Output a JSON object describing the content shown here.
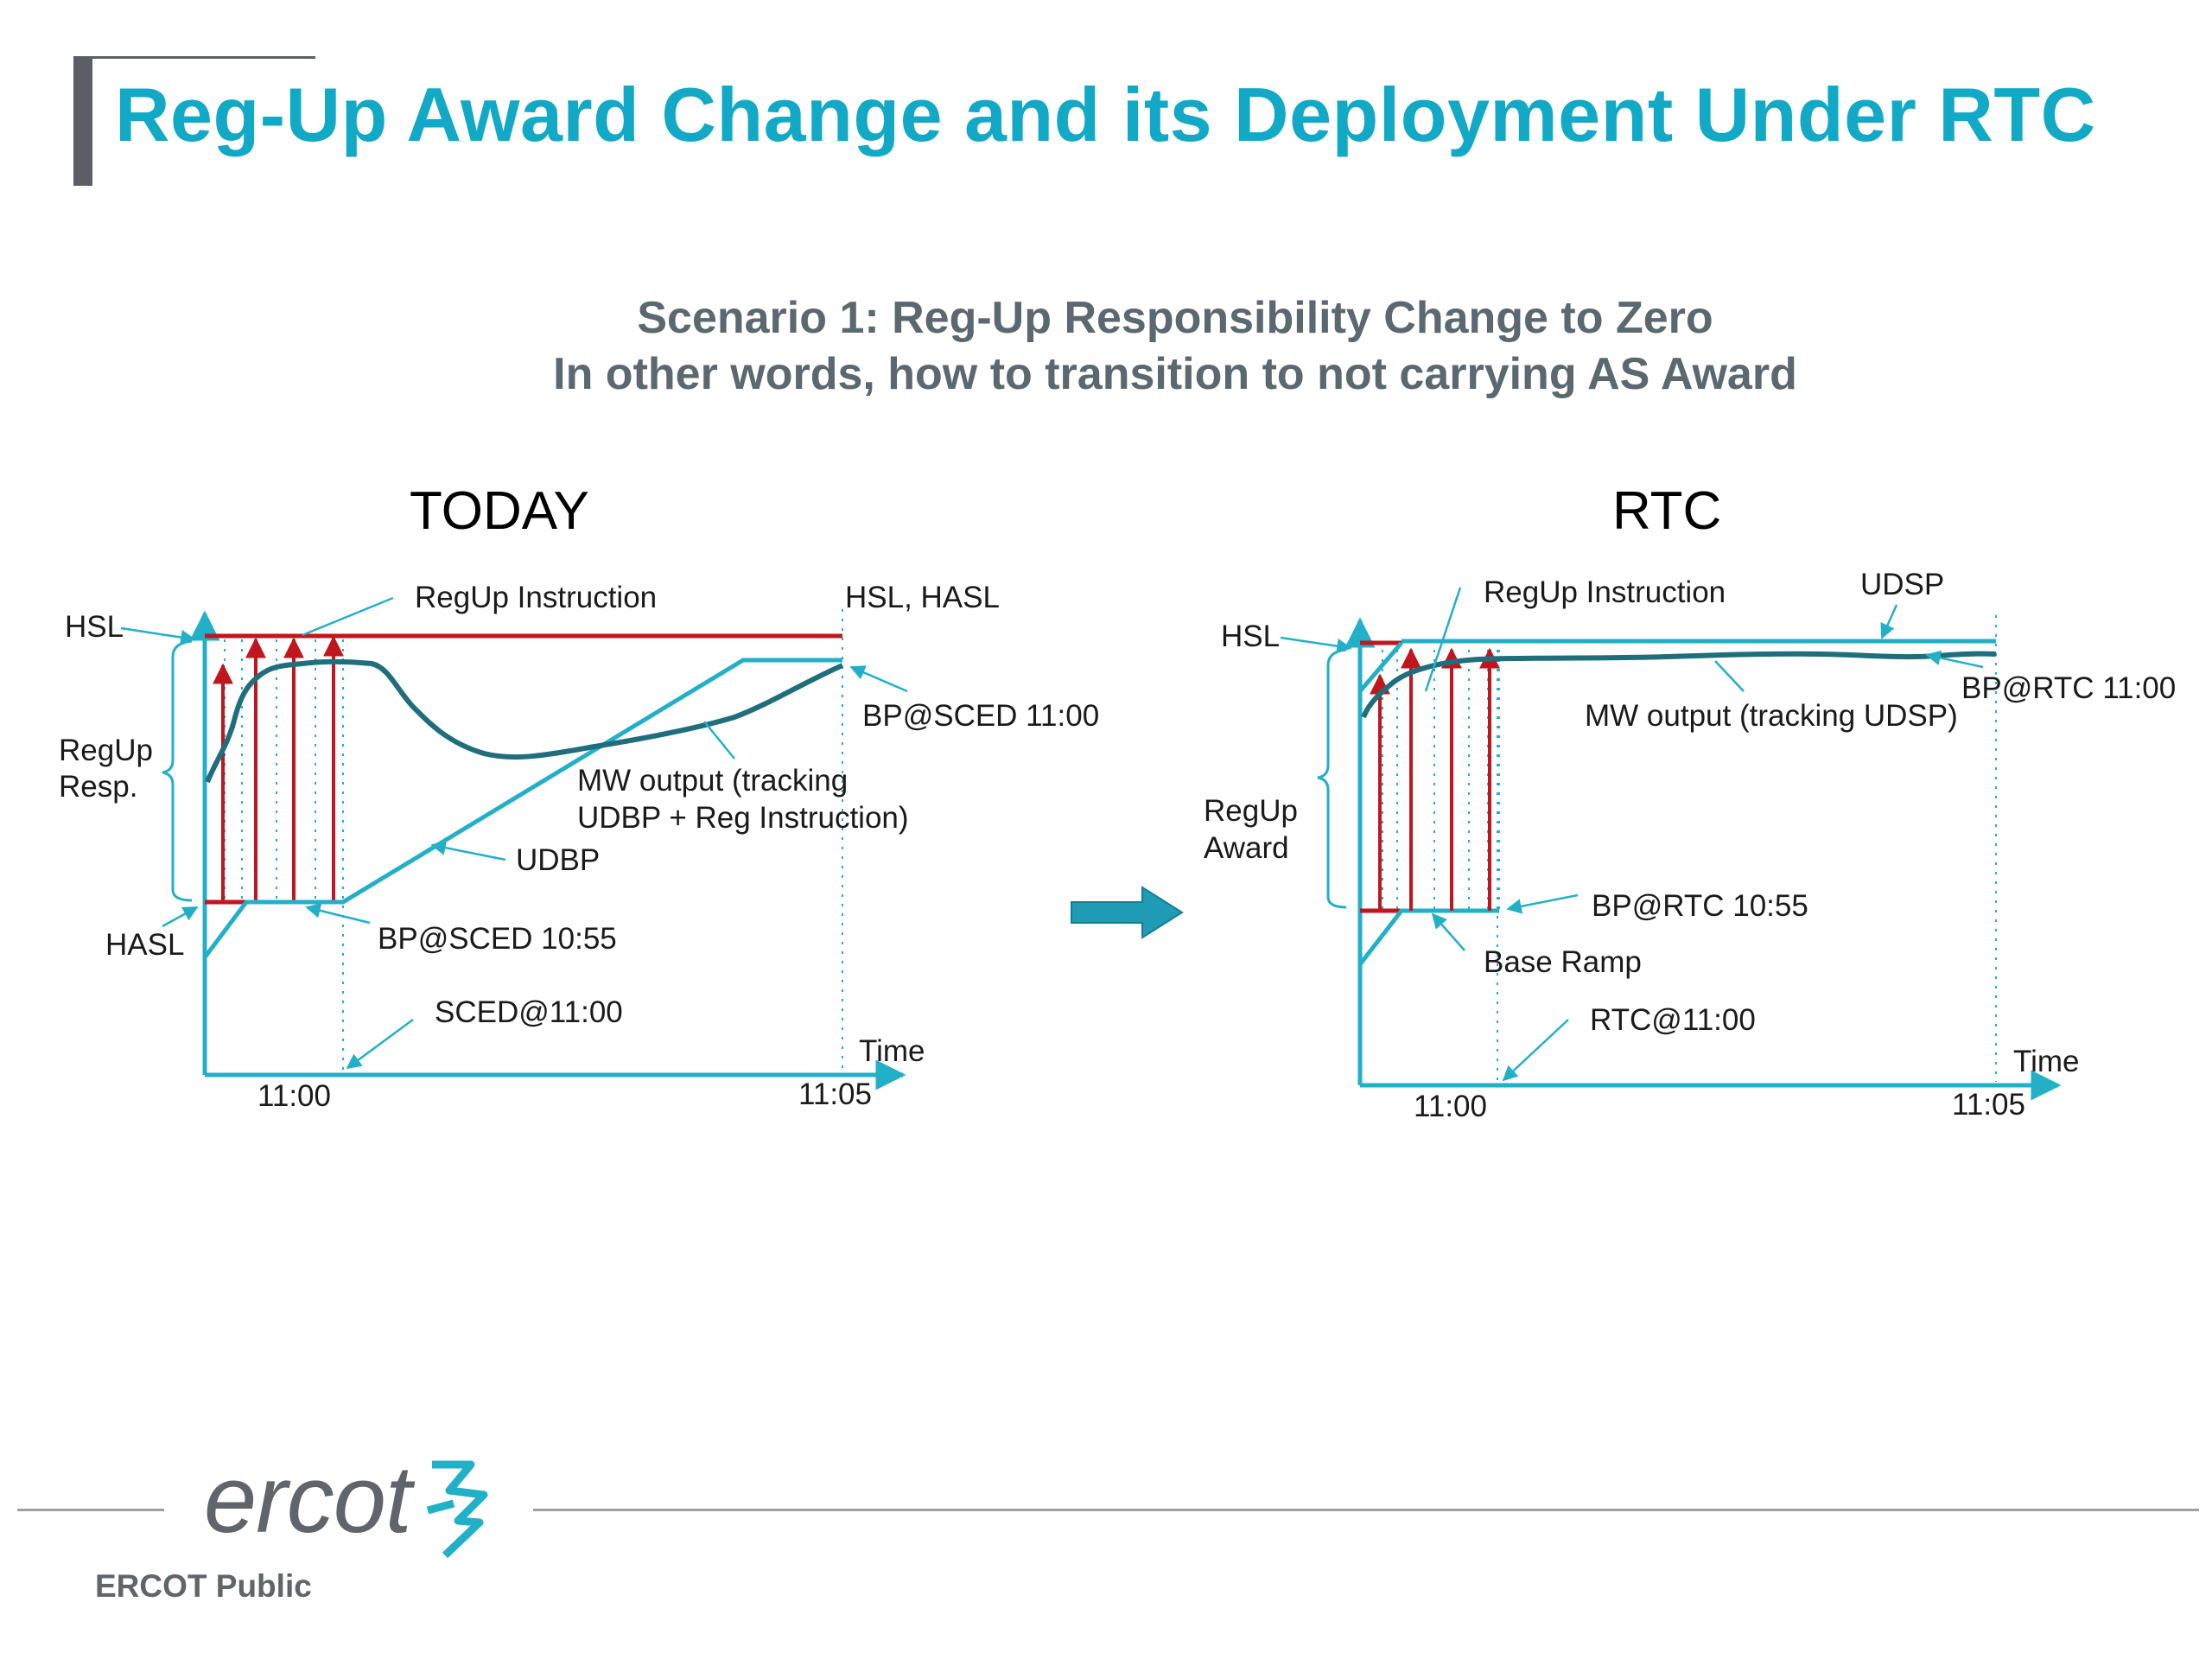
{
  "slide": {
    "title": "Reg-Up Award Change and its Deployment Under RTC",
    "subtitle_line1": "Scenario 1: Reg-Up Responsibility Change to Zero",
    "subtitle_line2": "In other words, how to transition to not carrying AS Award"
  },
  "today": {
    "header": "TODAY",
    "labels": {
      "hsl": "HSL",
      "regup_resp_1": "RegUp",
      "regup_resp_2": "Resp.",
      "hasl": "HASL",
      "regup_instruction": "RegUp Instruction",
      "hsl_hasl": "HSL, HASL",
      "bp_sced_1100": "BP@SCED 11:00",
      "mw_output_1": "MW output (tracking",
      "mw_output_2": "UDBP + Reg Instruction)",
      "udbp": "UDBP",
      "bp_sced_1055": "BP@SCED 10:55",
      "sced_1100": "SCED@11:00",
      "time": "Time",
      "tick_1100": "11:00",
      "tick_1105": "11:05"
    }
  },
  "rtc": {
    "header": "RTC",
    "labels": {
      "hsl": "HSL",
      "regup_award_1": "RegUp",
      "regup_award_2": "Award",
      "regup_instruction": "RegUp Instruction",
      "udsp": "UDSP",
      "bp_rtc_1100": "BP@RTC 11:00",
      "mw_output": "MW output (tracking UDSP)",
      "bp_rtc_1055": "BP@RTC 10:55",
      "base_ramp": "Base Ramp",
      "rtc_1100": "RTC@11:00",
      "time": "Time",
      "tick_1100": "11:00",
      "tick_1105": "11:05"
    }
  },
  "footer": {
    "logo": "ercot",
    "classification": "ERCOT Public"
  },
  "colors": {
    "title": "#12a9c6",
    "axis": "#22b0c8",
    "mw_output": "#1f6e7c",
    "reg_instruction": "#c0161d",
    "subtitle": "#5b6870",
    "logo_gray": "#5f656b"
  }
}
